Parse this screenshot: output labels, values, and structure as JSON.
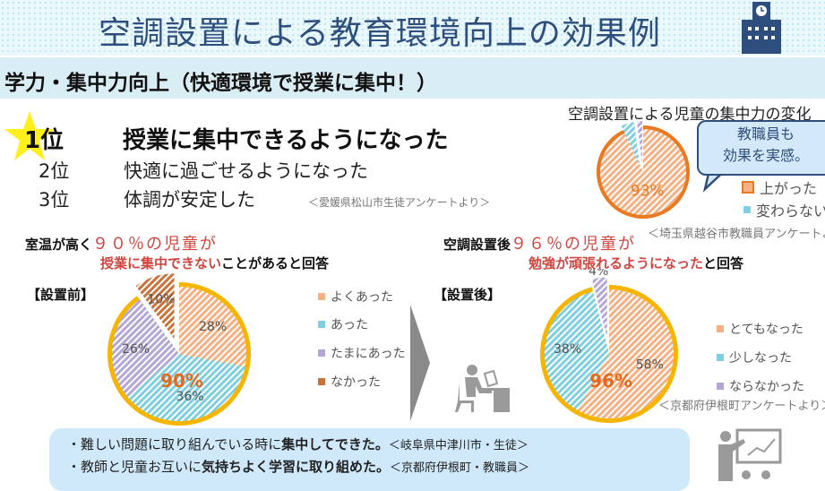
{
  "header": {
    "title": "空調設置による教育環境向上の効果例"
  },
  "section": {
    "title": "学力・集中力向上（快適環境で授業に集中！）"
  },
  "ranking": {
    "items": [
      {
        "rank": "1位",
        "text": "授業に集中できるようになった"
      },
      {
        "rank": "2位",
        "text": "快適に過ごせるようになった"
      },
      {
        "rank": "3位",
        "text": "体調が安定した"
      }
    ],
    "source": "＜愛媛県松山市生徒アンケートより＞"
  },
  "teacher_callout": {
    "line1": "教職員も",
    "line2": "効果を実感。"
  },
  "before": {
    "headline_a": "室温が高く",
    "headline_b": "９０％の児童が",
    "headline_c": "授業に集中できない",
    "headline_d": "ことがあると回答",
    "tag": "【設置前】",
    "highlight": "90%"
  },
  "after": {
    "headline_a": "空調設置後",
    "headline_b": "９６％の児童が",
    "headline_c": "勉強が頑張れるようになった",
    "headline_d": "と回答",
    "tag": "【設置後】",
    "highlight": "96%",
    "source": "＜京都府伊根町アンケートより＞"
  },
  "quotes": [
    {
      "pre": "・難しい問題に取り組んでいる時に",
      "bold": "集中してできた。",
      "src": "＜岐阜県中津川市・生徒＞"
    },
    {
      "pre": "・教師と児童お互いに",
      "bold": "気持ちよく学習に取り組めた。",
      "src": "＜京都府伊根町・教職員＞"
    }
  ],
  "chart_data": [
    {
      "type": "pie",
      "title": "空調設置による児童の集中力の変化",
      "source": "＜埼玉県越谷市教職員アンケートより＞",
      "categories": [
        "上がった",
        "変わらない",
        ""
      ],
      "values": [
        93,
        5,
        2
      ],
      "labels": [
        "93%",
        "",
        ""
      ],
      "colors": [
        "#f4b183",
        "#7fcfe0",
        "#b4a7d6"
      ]
    },
    {
      "type": "pie",
      "categories": [
        "よくあった",
        "あった",
        "たまにあった",
        "なかった"
      ],
      "values": [
        28,
        36,
        26,
        10
      ],
      "labels": [
        "28%",
        "36%",
        "26%",
        "10%"
      ],
      "colors": [
        "#f4b183",
        "#7fcfe0",
        "#b4a7d6",
        "#c9733a"
      ],
      "exploded": "なかった"
    },
    {
      "type": "pie",
      "categories": [
        "とてもなった",
        "少しなった",
        "ならなかった"
      ],
      "values": [
        58,
        38,
        4
      ],
      "labels": [
        "58%",
        "38%",
        "4%"
      ],
      "colors": [
        "#f4b183",
        "#7fcfe0",
        "#b4a7d6"
      ],
      "exploded": "ならなかった"
    }
  ]
}
